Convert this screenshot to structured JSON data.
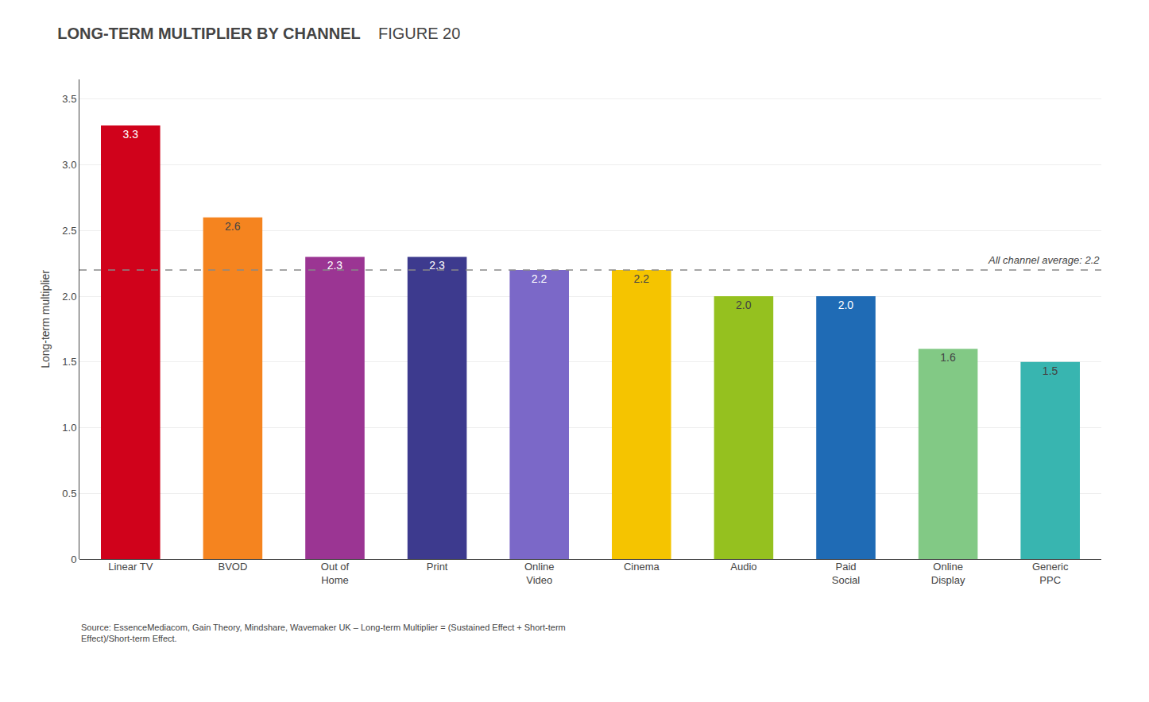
{
  "chart_data": {
    "type": "bar",
    "title": "LONG-TERM MULTIPLIER BY CHANNEL",
    "subtitle": "FIGURE 20",
    "ylabel": "Long-term multiplier",
    "categories": [
      "Linear TV",
      "BVOD",
      "Out of\nHome",
      "Print",
      "Online\nVideo",
      "Cinema",
      "Audio",
      "Paid\nSocial",
      "Online\nDisplay",
      "Generic\nPPC"
    ],
    "values": [
      3.3,
      2.6,
      2.3,
      2.3,
      2.2,
      2.2,
      2.0,
      2.0,
      1.6,
      1.5
    ],
    "value_labels": [
      "3.3",
      "2.6",
      "2.3",
      "2.3",
      "2.2",
      "2.2",
      "2.0",
      "2.0",
      "1.6",
      "1.5"
    ],
    "colors": [
      "#d0021b",
      "#f5841f",
      "#9b3593",
      "#3d3a8e",
      "#7b68c8",
      "#f5c400",
      "#95c11f",
      "#1f6bb5",
      "#82c985",
      "#38b5b0"
    ],
    "data_labels": true,
    "ylim": [
      0,
      3.65
    ],
    "yticks": [
      0,
      0.5,
      {
        "value": 1,
        "label": "1.0"
      },
      1.5,
      {
        "value": 2,
        "label": "2.0"
      },
      2.5,
      {
        "value": 3,
        "label": "3.0"
      },
      3.5
    ],
    "grid": true,
    "average": {
      "value": 2.2,
      "label": "All channel average: 2.2",
      "color": "#888888"
    },
    "source": "Source: EssenceMediacom, Gain Theory, Mindshare, Wavemaker UK – Long-term Multiplier = (Sustained Effect + Short-term\nEffect)/Short-term Effect."
  }
}
